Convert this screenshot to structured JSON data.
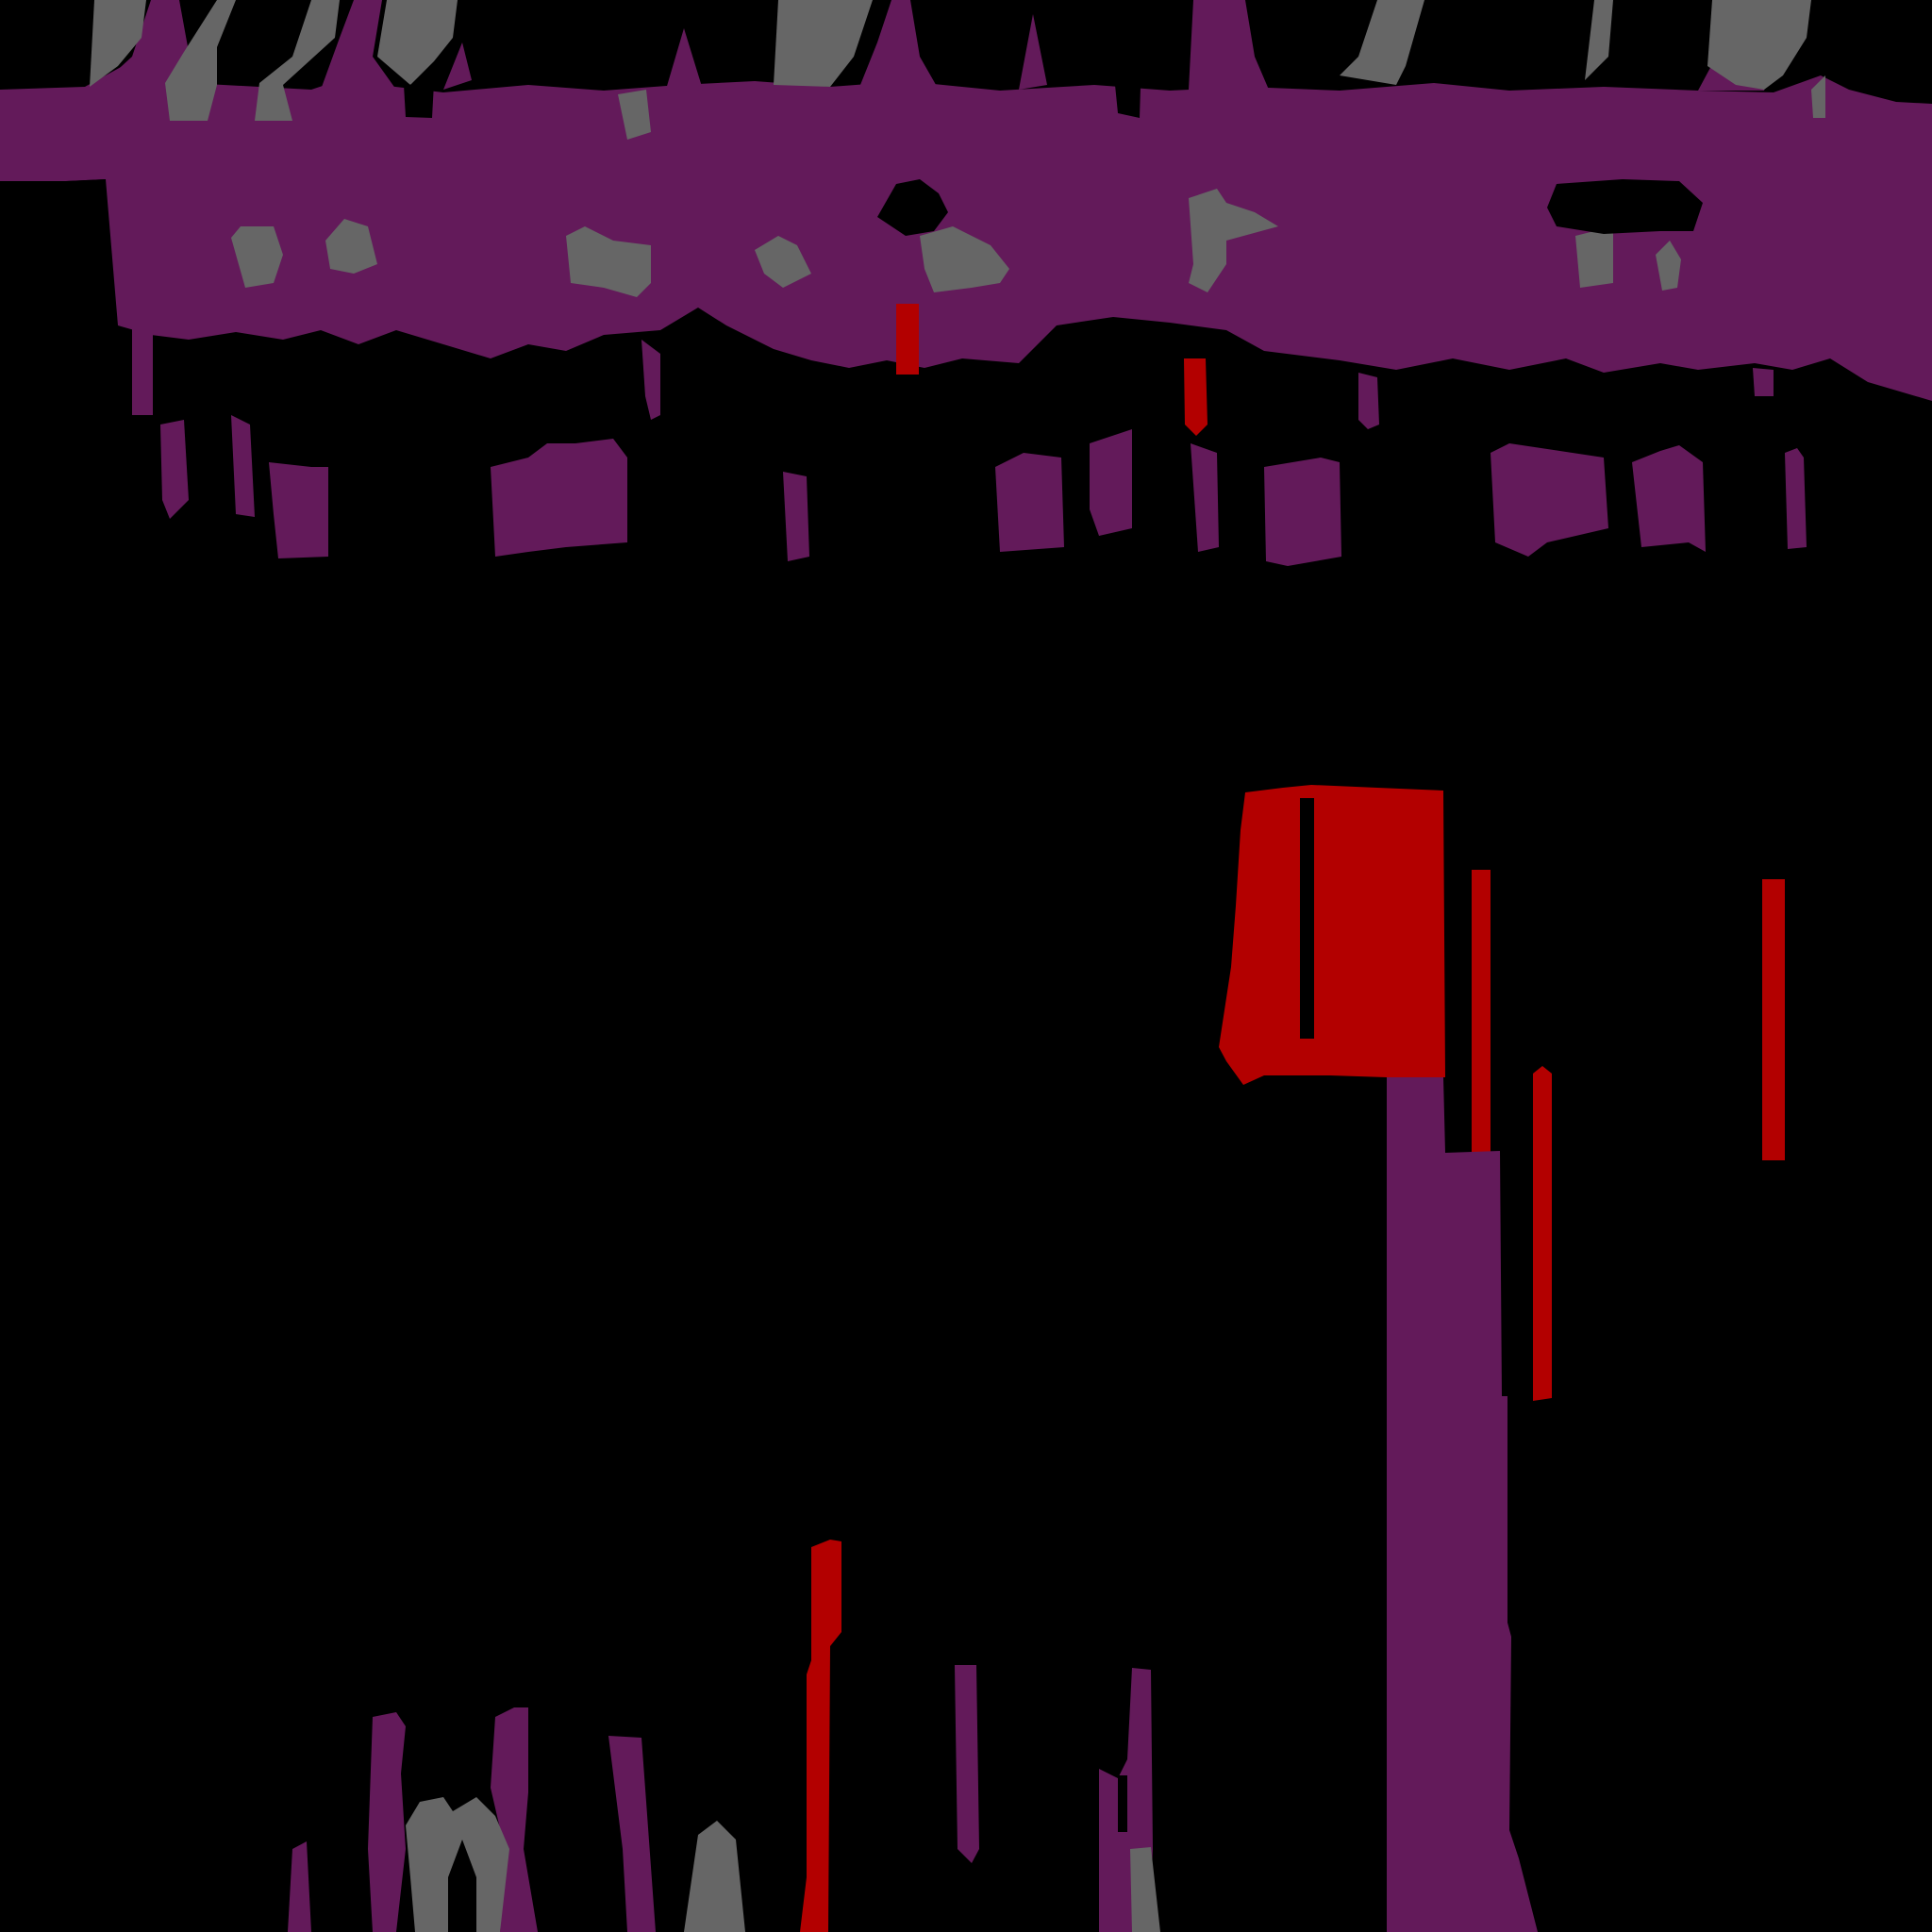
{
  "canvas": {
    "background": "#000000"
  },
  "palette": {
    "purple": "#631A5A",
    "gray": "#666666",
    "red": "#B30000",
    "black": "#000000"
  }
}
